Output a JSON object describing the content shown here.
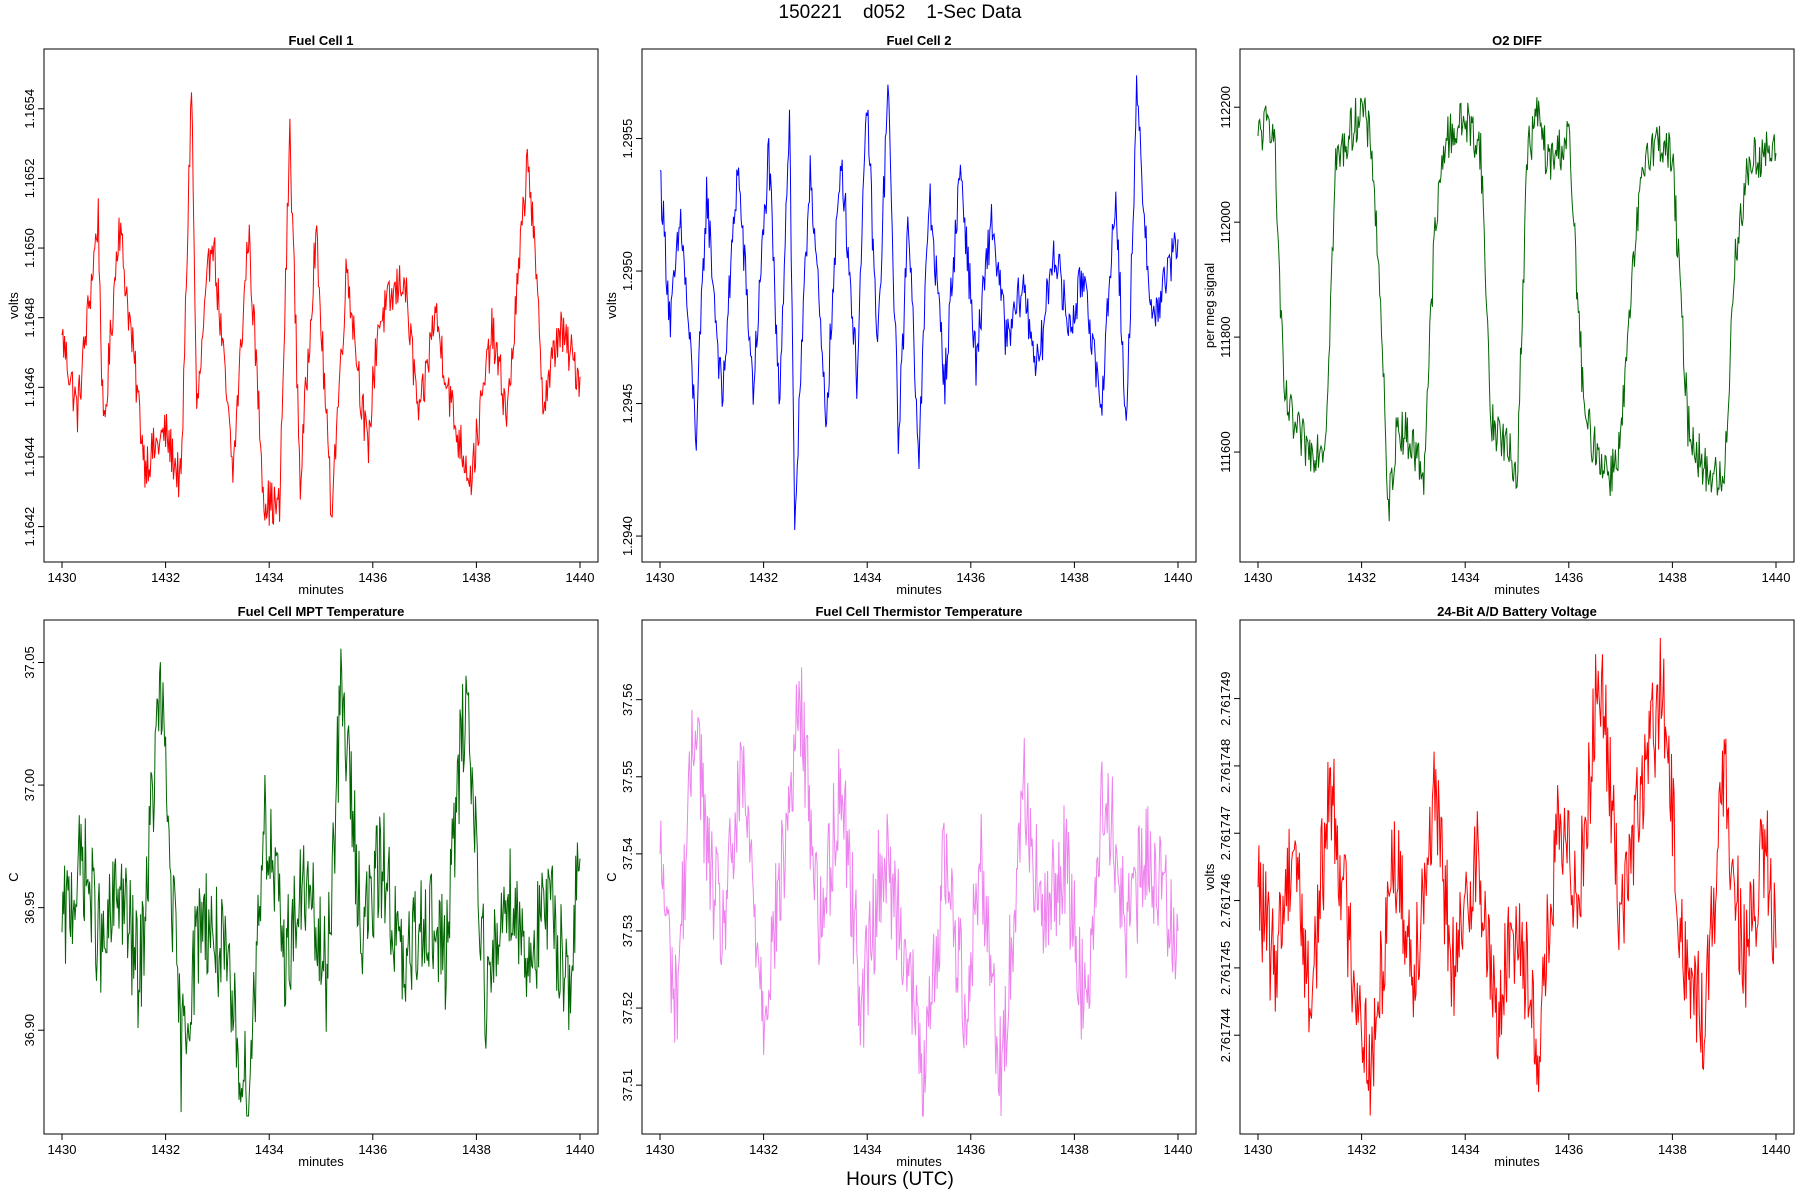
{
  "page": {
    "title": "150221    d052    1-Sec Data",
    "x_axis_title": "Hours (UTC)"
  },
  "chart_data": [
    {
      "type": "line",
      "title": "Fuel Cell 1",
      "xlabel": "minutes",
      "ylabel": "volts",
      "color": "#ff0000",
      "xlim": [
        1430,
        1440
      ],
      "ylim": [
        1.16415,
        1.16552
      ],
      "xticks": [
        "1430",
        "1432",
        "1434",
        "1436",
        "1438",
        "1440"
      ],
      "yticks": [
        "1.1642",
        "1.1644",
        "1.1646",
        "1.1648",
        "1.1650",
        "1.1652",
        "1.1654"
      ],
      "series": [
        {
          "x": [
            1430.0,
            1430.3,
            1430.7,
            1430.8,
            1431.1,
            1431.6,
            1432.0,
            1432.3,
            1432.5,
            1432.6,
            1432.9,
            1433.3,
            1433.6,
            1433.9,
            1434.2,
            1434.4,
            1434.6,
            1434.9,
            1435.2,
            1435.5,
            1435.9,
            1436.1,
            1436.6,
            1436.9,
            1437.2,
            1437.6,
            1437.9,
            1438.3,
            1438.6,
            1439.0,
            1439.3,
            1439.6,
            1440.0
          ],
          "y": [
            1.16475,
            1.16453,
            1.16509,
            1.16445,
            1.16508,
            1.16438,
            1.16447,
            1.16432,
            1.16548,
            1.16452,
            1.16506,
            1.16435,
            1.16505,
            1.16428,
            1.16425,
            1.16534,
            1.16432,
            1.16505,
            1.16425,
            1.16495,
            1.16441,
            1.16478,
            1.16492,
            1.1645,
            1.16482,
            1.16448,
            1.16434,
            1.16476,
            1.16452,
            1.16528,
            1.16455,
            1.16477,
            1.16463
          ]
        }
      ]
    },
    {
      "type": "line",
      "title": "Fuel Cell 2",
      "xlabel": "minutes",
      "ylabel": "volts",
      "color": "#0000ff",
      "xlim": [
        1430,
        1440
      ],
      "ylim": [
        1.29397,
        1.29577
      ],
      "xticks": [
        "1430",
        "1432",
        "1434",
        "1436",
        "1438",
        "1440"
      ],
      "yticks": [
        "1.2940",
        "1.2945",
        "1.2950",
        "1.2955"
      ],
      "series": [
        {
          "x": [
            1430.0,
            1430.2,
            1430.4,
            1430.7,
            1430.9,
            1431.2,
            1431.5,
            1431.8,
            1432.1,
            1432.3,
            1432.5,
            1432.6,
            1432.9,
            1433.2,
            1433.5,
            1433.8,
            1434.0,
            1434.2,
            1434.4,
            1434.6,
            1434.8,
            1435.0,
            1435.2,
            1435.5,
            1435.8,
            1436.1,
            1436.4,
            1436.7,
            1437.0,
            1437.3,
            1437.6,
            1437.9,
            1438.2,
            1438.5,
            1438.8,
            1439.0,
            1439.2,
            1439.5,
            1440.0
          ],
          "y": [
            1.29538,
            1.2948,
            1.2952,
            1.29438,
            1.2953,
            1.2945,
            1.2954,
            1.29455,
            1.29545,
            1.2945,
            1.2956,
            1.29405,
            1.29542,
            1.29443,
            1.29545,
            1.2946,
            1.29565,
            1.29468,
            1.2957,
            1.29438,
            1.2952,
            1.2943,
            1.2953,
            1.29458,
            1.2954,
            1.29465,
            1.2952,
            1.29472,
            1.29495,
            1.29462,
            1.2951,
            1.29478,
            1.295,
            1.29445,
            1.2953,
            1.29438,
            1.29565,
            1.2948,
            1.29512
          ]
        }
      ]
    },
    {
      "type": "line",
      "title": "O2 DIFF",
      "xlabel": "minutes",
      "ylabel": "per meg signal",
      "color": "#006400",
      "xlim": [
        1430,
        1440
      ],
      "ylim": [
        111440,
        112270
      ],
      "xticks": [
        "1430",
        "1432",
        "1434",
        "1436",
        "1438",
        "1440"
      ],
      "yticks": [
        "111600",
        "111800",
        "112000",
        "112200"
      ],
      "series": [
        {
          "x": [
            1430.0,
            1430.3,
            1430.5,
            1430.7,
            1431.0,
            1431.3,
            1431.5,
            1431.8,
            1432.0,
            1432.2,
            1432.4,
            1432.5,
            1432.7,
            1433.0,
            1433.2,
            1433.4,
            1433.6,
            1434.0,
            1434.3,
            1434.5,
            1434.7,
            1435.0,
            1435.2,
            1435.4,
            1435.6,
            1436.0,
            1436.3,
            1436.5,
            1436.8,
            1437.0,
            1437.3,
            1437.5,
            1437.8,
            1438.0,
            1438.3,
            1438.6,
            1438.8,
            1439.0,
            1439.2,
            1439.5,
            1439.8,
            1440.0
          ],
          "y": [
            112150,
            112180,
            111700,
            111640,
            111600,
            111620,
            112100,
            112160,
            112200,
            112130,
            111800,
            111490,
            111650,
            111610,
            111560,
            111960,
            112140,
            112180,
            112130,
            111650,
            111630,
            111560,
            112120,
            112190,
            112100,
            112150,
            111660,
            111610,
            111560,
            111620,
            111980,
            112130,
            112140,
            112110,
            111650,
            111570,
            111560,
            111540,
            111940,
            112110,
            112120,
            112120
          ]
        }
      ]
    },
    {
      "type": "line",
      "title": "Fuel Cell MPT Temperature",
      "xlabel": "minutes",
      "ylabel": "C",
      "color": "#006400",
      "xlim": [
        1430,
        1440
      ],
      "ylim": [
        36.865,
        37.06
      ],
      "xticks": [
        "1430",
        "1432",
        "1434",
        "1436",
        "1438",
        "1440"
      ],
      "yticks": [
        "36.90",
        "36.95",
        "37.00",
        "37.05"
      ],
      "series": [
        {
          "x": [
            1430.0,
            1430.4,
            1430.8,
            1431.1,
            1431.5,
            1431.9,
            1432.3,
            1432.7,
            1433.1,
            1433.6,
            1433.9,
            1434.3,
            1434.7,
            1435.1,
            1435.4,
            1435.8,
            1436.2,
            1436.6,
            1437.0,
            1437.4,
            1437.8,
            1438.2,
            1438.6,
            1439.0,
            1439.4,
            1439.8,
            1440.0
          ],
          "y": [
            36.94,
            36.97,
            36.93,
            36.96,
            36.92,
            37.04,
            36.89,
            36.95,
            36.93,
            36.87,
            36.99,
            36.93,
            36.96,
            36.92,
            37.04,
            36.94,
            36.97,
            36.92,
            36.95,
            36.93,
            37.04,
            36.91,
            36.96,
            36.93,
            36.95,
            36.92,
            36.97
          ]
        }
      ]
    },
    {
      "type": "line",
      "title": "Fuel Cell Thermistor Temperature",
      "xlabel": "minutes",
      "ylabel": "C",
      "color": "#ee82ee",
      "xlim": [
        1430,
        1440
      ],
      "ylim": [
        37.506,
        37.568
      ],
      "xticks": [
        "1430",
        "1432",
        "1434",
        "1436",
        "1438",
        "1440"
      ],
      "yticks": [
        "37.51",
        "37.52",
        "37.53",
        "37.54",
        "37.55",
        "37.56"
      ],
      "series": [
        {
          "x": [
            1430.0,
            1430.3,
            1430.7,
            1430.9,
            1431.2,
            1431.6,
            1432.0,
            1432.4,
            1432.7,
            1433.1,
            1433.5,
            1433.9,
            1434.3,
            1434.7,
            1435.1,
            1435.5,
            1435.9,
            1436.2,
            1436.6,
            1437.0,
            1437.4,
            1437.8,
            1438.2,
            1438.6,
            1439.0,
            1439.4,
            1440.0
          ],
          "y": [
            37.54,
            37.52,
            37.56,
            37.54,
            37.53,
            37.55,
            37.52,
            37.54,
            37.56,
            37.53,
            37.55,
            37.52,
            37.54,
            37.53,
            37.51,
            37.54,
            37.52,
            37.54,
            37.51,
            37.55,
            37.53,
            37.54,
            37.52,
            37.55,
            37.53,
            37.54,
            37.53
          ]
        }
      ]
    },
    {
      "type": "line",
      "title": "24-Bit A/D Battery Voltage",
      "xlabel": "minutes",
      "ylabel": "volts",
      "color": "#ff0000",
      "xlim": [
        1430,
        1440
      ],
      "ylim": [
        2.7617428,
        2.7617499
      ],
      "xticks": [
        "1430",
        "1432",
        "1434",
        "1436",
        "1438",
        "1440"
      ],
      "yticks": [
        "2.761744",
        "2.761745",
        "2.761746",
        "2.761747",
        "2.761748",
        "2.761749"
      ],
      "series": [
        {
          "x": [
            1430.0,
            1430.3,
            1430.7,
            1431.0,
            1431.4,
            1431.8,
            1432.2,
            1432.6,
            1433.0,
            1433.4,
            1433.8,
            1434.2,
            1434.6,
            1435.0,
            1435.4,
            1435.8,
            1436.2,
            1436.6,
            1437.0,
            1437.4,
            1437.8,
            1438.2,
            1438.6,
            1439.0,
            1439.4,
            1439.8,
            1440.0
          ],
          "y": [
            2.7617462,
            2.761745,
            2.761747,
            2.7617444,
            2.7617478,
            2.7617452,
            2.7617434,
            2.7617468,
            2.761745,
            2.7617475,
            2.7617448,
            2.7617468,
            2.7617442,
            2.7617458,
            2.7617438,
            2.761747,
            2.7617462,
            2.7617495,
            2.7617458,
            2.7617476,
            2.7617492,
            2.7617452,
            2.7617442,
            2.7617478,
            2.761745,
            2.7617468,
            2.7617453
          ]
        }
      ]
    }
  ]
}
